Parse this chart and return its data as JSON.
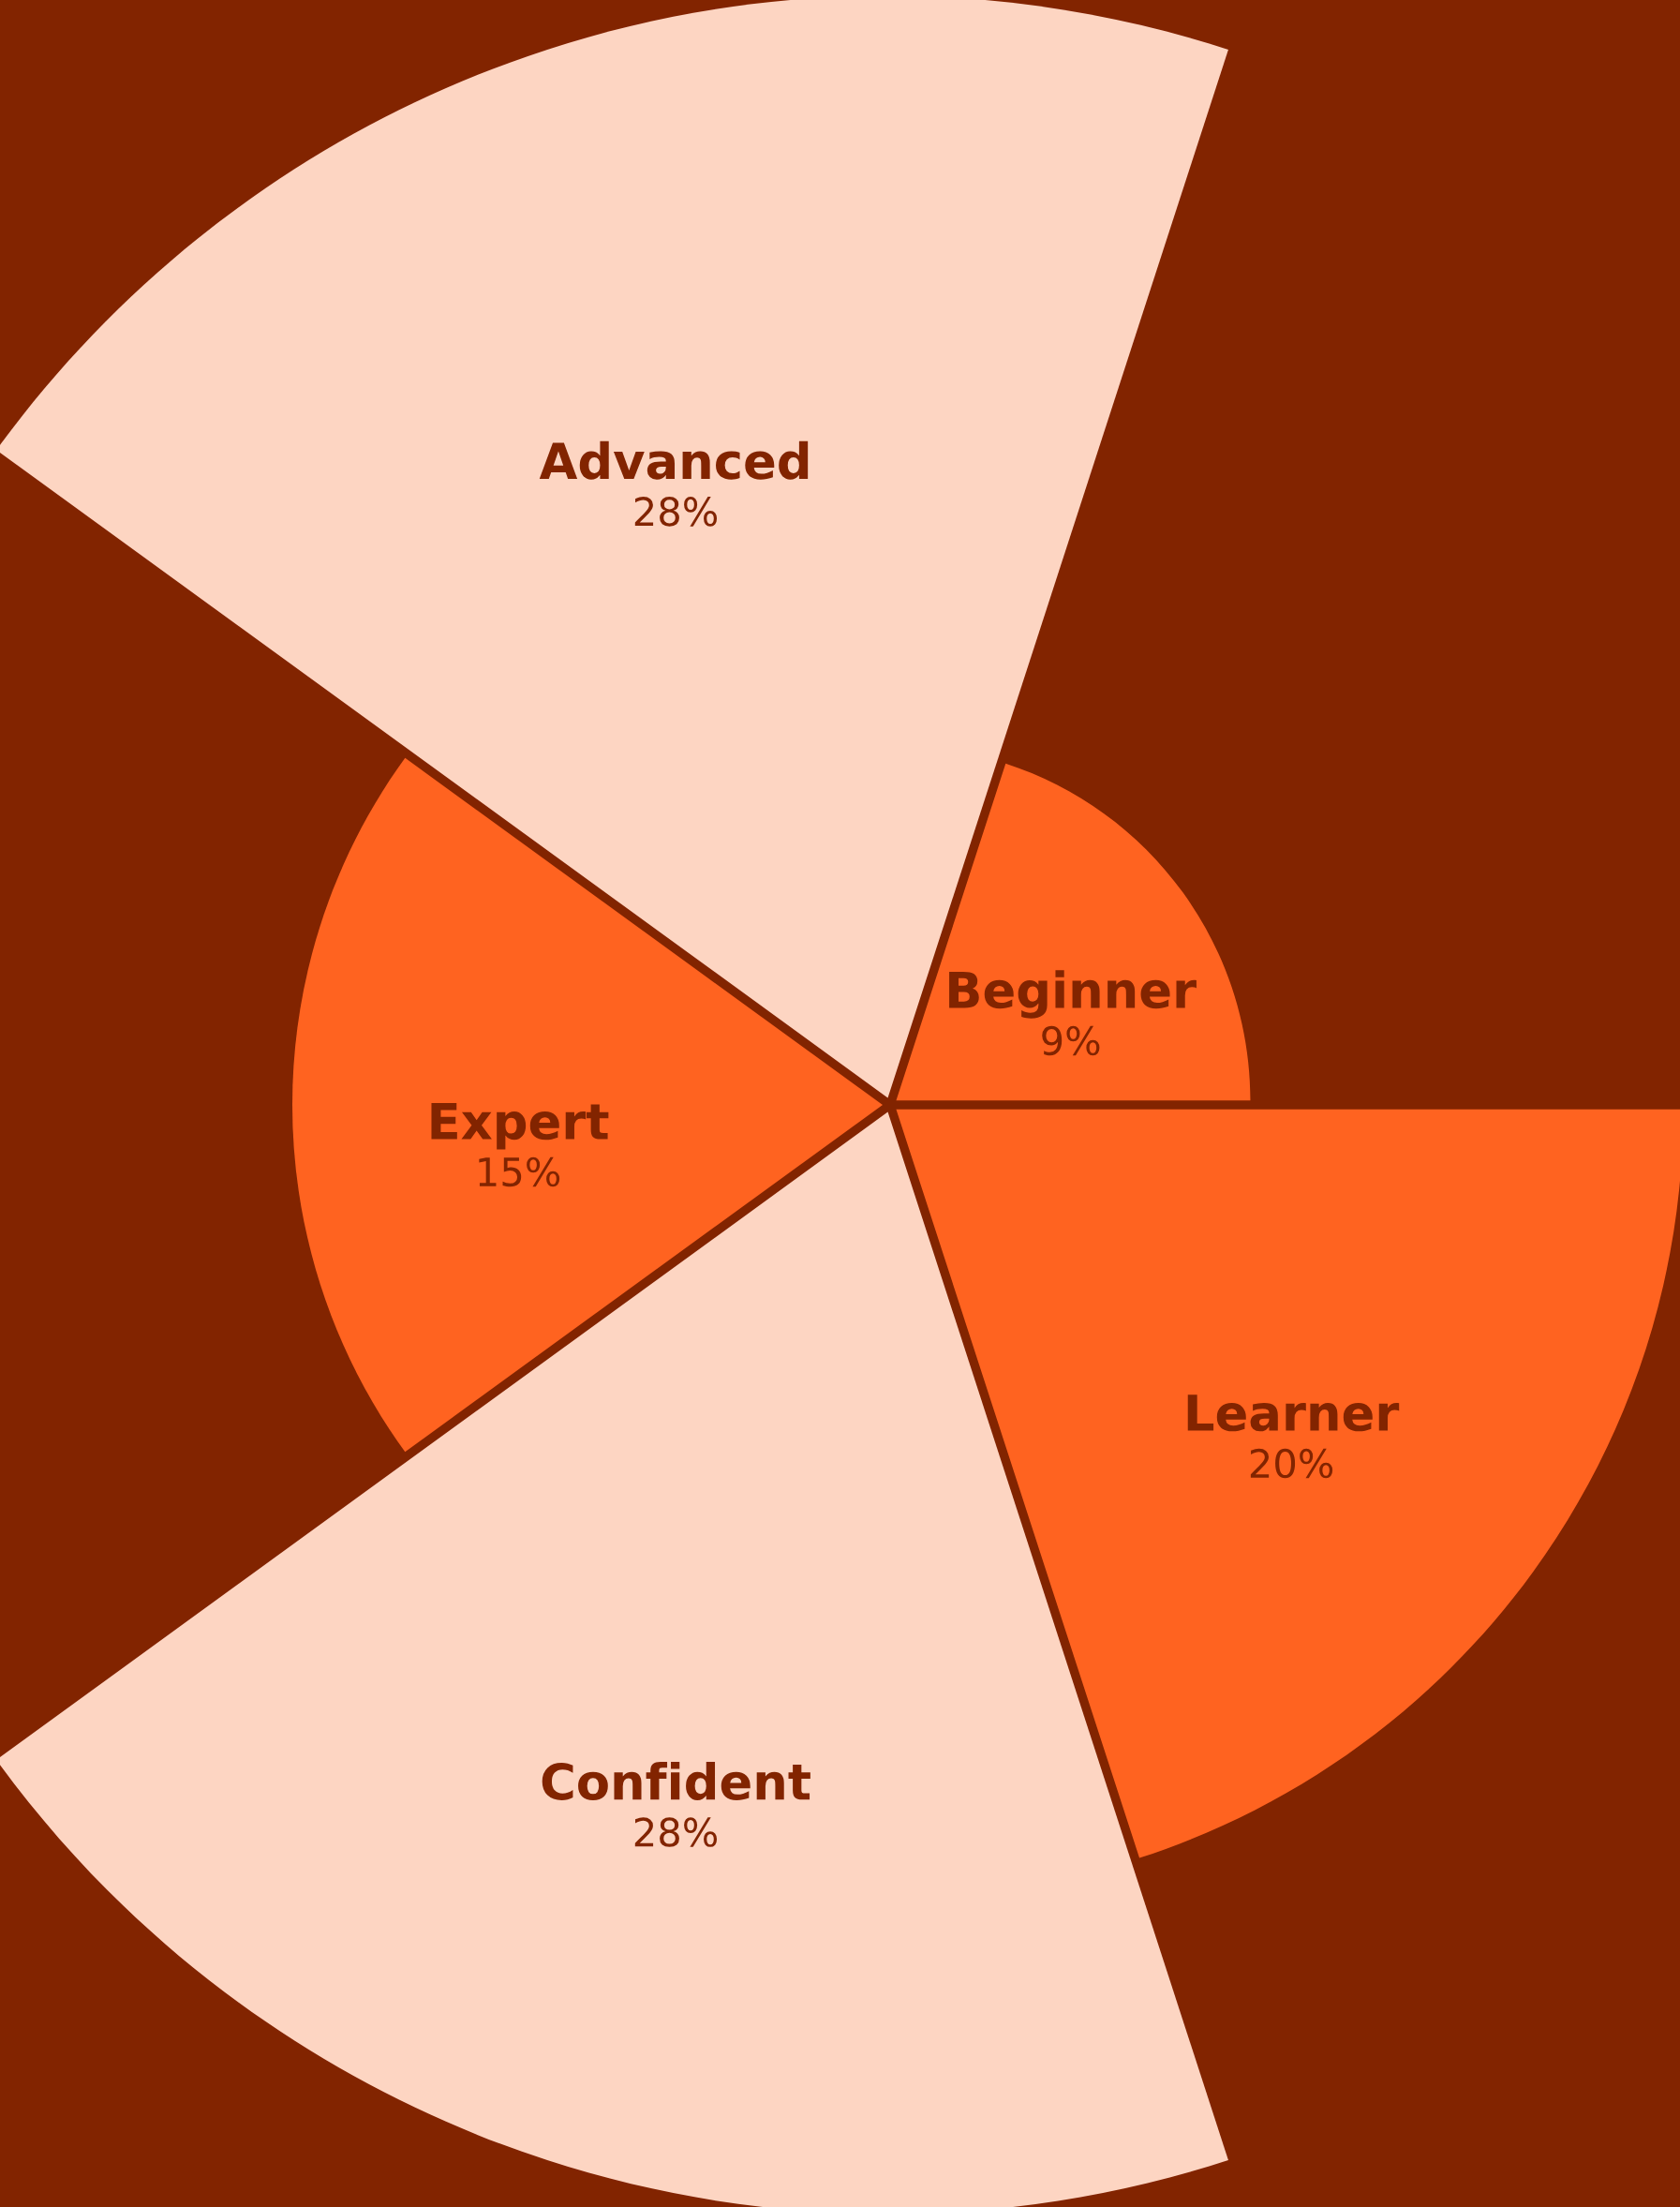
{
  "chart_data": {
    "type": "other",
    "categories": [
      "Beginner",
      "Advanced",
      "Expert",
      "Confident",
      "Learner"
    ],
    "values": [
      9,
      28,
      15,
      28,
      20
    ],
    "value_labels": [
      "9%",
      "28%",
      "15%",
      "28%",
      "20%"
    ],
    "colors": [
      "#ff6320",
      "#fdd5c2",
      "#ff6320",
      "#fdd5c2",
      "#ff6320"
    ]
  }
}
